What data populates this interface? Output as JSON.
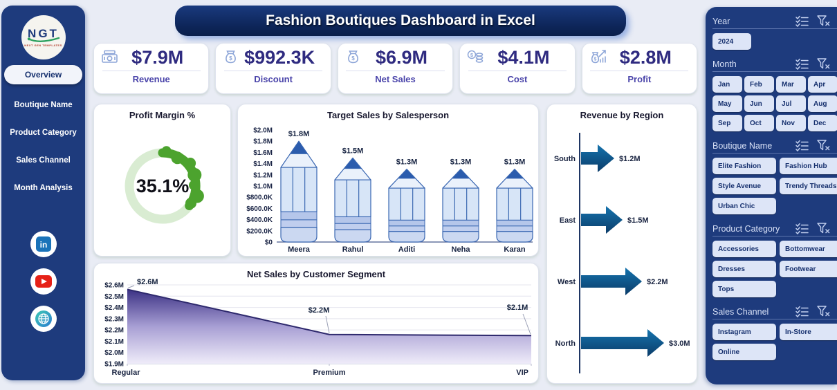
{
  "title": "Fashion Boutiques Dashboard in Excel",
  "colors": {
    "navy": "#1e3b7d",
    "banner": "#0d2558",
    "kpi_value": "#2f2b80",
    "kpi_label": "#4a44aa",
    "donut_green": "#4ca32e",
    "donut_track": "#d9ecd2",
    "pencil_blue": "#2b5cad",
    "pencil_body": "#d7e5f7",
    "pencil_outline": "#3a67b2",
    "arrow_blue_dark": "#0b3c69",
    "arrow_blue_light": "#1573ad",
    "area_purple_dark": "#3b3184",
    "area_purple_light": "#efecf9",
    "slicer_button_bg": "#dde5f7"
  },
  "sidebar": {
    "logo_text": "NGT",
    "logo_subtext": "NEXT GEN TEMPLATES",
    "items": [
      {
        "label": "Overview",
        "active": true
      },
      {
        "label": "Boutique Name",
        "active": false
      },
      {
        "label": "Product Category",
        "active": false
      },
      {
        "label": "Sales Channel",
        "active": false
      },
      {
        "label": "Month Analysis",
        "active": false
      }
    ],
    "social": [
      {
        "name": "linkedin"
      },
      {
        "name": "youtube"
      },
      {
        "name": "website"
      }
    ]
  },
  "kpis": [
    {
      "icon": "cash-stack",
      "value": "$7.9M",
      "label": "Revenue"
    },
    {
      "icon": "money-bag",
      "value": "$992.3K",
      "label": "Discount"
    },
    {
      "icon": "money-bag",
      "value": "$6.9M",
      "label": "Net Sales"
    },
    {
      "icon": "coins",
      "value": "$4.1M",
      "label": "Cost"
    },
    {
      "icon": "money-bag-chart",
      "value": "$2.8M",
      "label": "Profit"
    }
  ],
  "chart_data": [
    {
      "type": "donut",
      "title": "Profit Margin %",
      "value": 35.1,
      "max": 100,
      "center_label": "35.1%"
    },
    {
      "type": "bar",
      "subtype": "pencil",
      "title": "Target Sales by Salesperson",
      "categories": [
        "Meera",
        "Rahul",
        "Aditi",
        "Neha",
        "Karan"
      ],
      "values": [
        1.8,
        1.5,
        1.3,
        1.3,
        1.3
      ],
      "data_labels": [
        "$1.8M",
        "$1.5M",
        "$1.3M",
        "$1.3M",
        "$1.3M"
      ],
      "ylim": [
        0,
        2.0
      ],
      "yticks": [
        "$2.0M",
        "$1.8M",
        "$1.6M",
        "$1.4M",
        "$1.2M",
        "$1.0M",
        "$800.0K",
        "$600.0K",
        "$400.0K",
        "$200.0K",
        "$0"
      ],
      "grid": false,
      "unit": "millions USD"
    },
    {
      "type": "bar",
      "subtype": "arrow",
      "orientation": "horizontal",
      "title": "Revenue by Region",
      "categories": [
        "South",
        "East",
        "West",
        "North"
      ],
      "values": [
        1.2,
        1.5,
        2.2,
        3.0
      ],
      "data_labels": [
        "$1.2M",
        "$1.5M",
        "$2.2M",
        "$3.0M"
      ],
      "xlim": [
        0,
        3.0
      ],
      "grid": false,
      "unit": "millions USD"
    },
    {
      "type": "area",
      "title": "Net Sales by Customer Segment",
      "categories": [
        "Regular",
        "Premium",
        "VIP"
      ],
      "values": [
        2.56,
        2.16,
        2.15
      ],
      "data_labels": [
        "$2.6M",
        "$2.2M",
        "$2.1M"
      ],
      "ylim": [
        1.9,
        2.6
      ],
      "yticks": [
        "$2.6M",
        "$2.5M",
        "$2.4M",
        "$2.3M",
        "$2.2M",
        "$2.1M",
        "$2.0M",
        "$1.9M"
      ],
      "grid": true,
      "unit": "millions USD"
    }
  ],
  "slicers": [
    {
      "title": "Year",
      "columns": 1,
      "options": [
        "2024"
      ]
    },
    {
      "title": "Month",
      "columns": 4,
      "options": [
        "Jan",
        "Feb",
        "Mar",
        "Apr",
        "May",
        "Jun",
        "Jul",
        "Aug",
        "Sep",
        "Oct",
        "Nov",
        "Dec"
      ]
    },
    {
      "title": "Boutique Name",
      "columns": 2,
      "options": [
        "Elite Fashion",
        "Fashion Hub",
        "Style Avenue",
        "Trendy Threads",
        "Urban Chic"
      ]
    },
    {
      "title": "Product Category",
      "columns": 2,
      "options": [
        "Accessories",
        "Bottomwear",
        "Dresses",
        "Footwear",
        "Tops"
      ]
    },
    {
      "title": "Sales Channel",
      "columns": 2,
      "options": [
        "Instagram",
        "In-Store",
        "Online"
      ]
    }
  ]
}
